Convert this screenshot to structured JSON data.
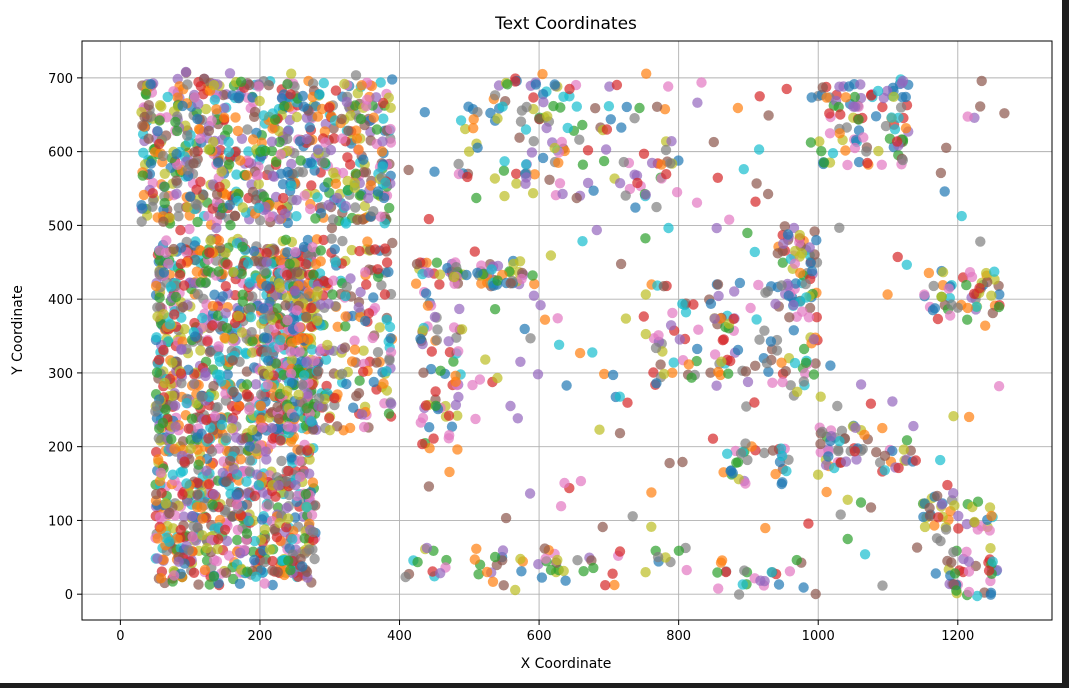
{
  "chart_data": {
    "type": "scatter",
    "title": "Text Coordinates",
    "xlabel": "X Coordinate",
    "ylabel": "Y Coordinate",
    "xlim": [
      -55,
      1335
    ],
    "ylim": [
      -35,
      750
    ],
    "xticks": [
      0,
      200,
      400,
      600,
      800,
      1000,
      1200
    ],
    "yticks": [
      0,
      100,
      200,
      300,
      400,
      500,
      600,
      700
    ],
    "grid": true,
    "marker_alpha": 0.7,
    "palette": [
      "#1f77b4",
      "#ff7f0e",
      "#2ca02c",
      "#d62728",
      "#9467bd",
      "#8c564b",
      "#e377c2",
      "#7f7f7f",
      "#bcbd22",
      "#17becf"
    ],
    "point_density_note": "points sampled approximately; dense text-region clusters",
    "clusters": [
      {
        "x": [
          50,
          280
        ],
        "y": [
          20,
          480
        ],
        "n": 1400
      },
      {
        "x": [
          200,
          390
        ],
        "y": [
          220,
          480
        ],
        "n": 300
      },
      {
        "x": [
          30,
          390
        ],
        "y": [
          500,
          700
        ],
        "n": 700
      },
      {
        "x": [
          420,
          600
        ],
        "y": [
          420,
          450
        ],
        "n": 70
      },
      {
        "x": [
          430,
          490
        ],
        "y": [
          200,
          400
        ],
        "n": 60
      },
      {
        "x": [
          480,
          640
        ],
        "y": [
          540,
          700
        ],
        "n": 60
      },
      {
        "x": [
          600,
          800
        ],
        "y": [
          540,
          700
        ],
        "n": 60
      },
      {
        "x": [
          760,
          1000
        ],
        "y": [
          280,
          420
        ],
        "n": 120
      },
      {
        "x": [
          940,
          1000
        ],
        "y": [
          400,
          500
        ],
        "n": 50
      },
      {
        "x": [
          1000,
          1130
        ],
        "y": [
          580,
          700
        ],
        "n": 100
      },
      {
        "x": [
          1150,
          1260
        ],
        "y": [
          380,
          440
        ],
        "n": 50
      },
      {
        "x": [
          1000,
          1140
        ],
        "y": [
          170,
          230
        ],
        "n": 60
      },
      {
        "x": [
          860,
          960
        ],
        "y": [
          150,
          200
        ],
        "n": 30
      },
      {
        "x": [
          1150,
          1250
        ],
        "y": [
          80,
          140
        ],
        "n": 40
      },
      {
        "x": [
          1180,
          1260
        ],
        "y": [
          0,
          60
        ],
        "n": 40
      },
      {
        "x": [
          400,
          900
        ],
        "y": [
          20,
          60
        ],
        "n": 50
      },
      {
        "x": [
          880,
          1000
        ],
        "y": [
          0,
          40
        ],
        "n": 15
      },
      {
        "x": [
          400,
          1270
        ],
        "y": [
          0,
          700
        ],
        "n": 200
      }
    ]
  }
}
